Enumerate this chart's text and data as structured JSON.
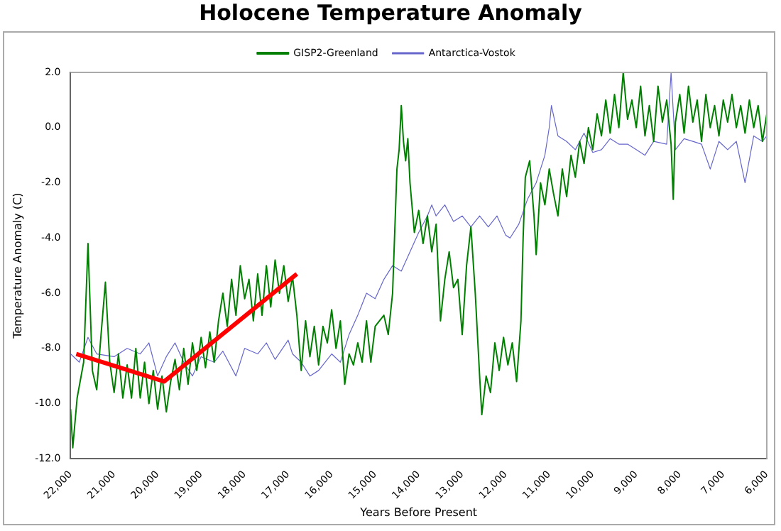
{
  "chart_data": {
    "type": "line",
    "title": "Holocene Temperature Anomaly",
    "xlabel": "Years Before Present",
    "ylabel": "Temperature Anomaly (C)",
    "xlim": [
      22000,
      6000
    ],
    "ylim": [
      -12,
      2
    ],
    "xticks": [
      {
        "value": 22000,
        "label": "22,000"
      },
      {
        "value": 21000,
        "label": "21,000"
      },
      {
        "value": 20000,
        "label": "20,000"
      },
      {
        "value": 19000,
        "label": "19,000"
      },
      {
        "value": 18000,
        "label": "18,000"
      },
      {
        "value": 17000,
        "label": "17,000"
      },
      {
        "value": 16000,
        "label": "16,000"
      },
      {
        "value": 15000,
        "label": "15,000"
      },
      {
        "value": 14000,
        "label": "14,000"
      },
      {
        "value": 13000,
        "label": "13,000"
      },
      {
        "value": 12000,
        "label": "12,000"
      },
      {
        "value": 11000,
        "label": "11,000"
      },
      {
        "value": 10000,
        "label": "10,000"
      },
      {
        "value": 9000,
        "label": "9,000"
      },
      {
        "value": 8000,
        "label": "8,000"
      },
      {
        "value": 7000,
        "label": "7,000"
      },
      {
        "value": 6000,
        "label": "6,000"
      }
    ],
    "yticks": [
      {
        "value": -12,
        "label": "-12.0"
      },
      {
        "value": -10,
        "label": "-10.0"
      },
      {
        "value": -8,
        "label": "-8.0"
      },
      {
        "value": -6,
        "label": "-6.0"
      },
      {
        "value": -4,
        "label": "-4.0"
      },
      {
        "value": -2,
        "label": "-2.0"
      },
      {
        "value": 0,
        "label": "0.0"
      },
      {
        "value": 2,
        "label": "2.0"
      }
    ],
    "legend": "top",
    "marker": "none",
    "line_style": "solid",
    "series": [
      {
        "name": "GISP2-Greenland",
        "color": "#008000",
        "x": [
          22000,
          21950,
          21850,
          21700,
          21600,
          21500,
          21400,
          21300,
          21200,
          21100,
          21000,
          20900,
          20800,
          20700,
          20600,
          20500,
          20400,
          20300,
          20200,
          20100,
          20000,
          19900,
          19800,
          19700,
          19600,
          19500,
          19400,
          19300,
          19200,
          19100,
          19000,
          18900,
          18800,
          18700,
          18600,
          18500,
          18400,
          18300,
          18200,
          18100,
          18000,
          17900,
          17800,
          17700,
          17600,
          17500,
          17400,
          17300,
          17200,
          17100,
          17000,
          16900,
          16800,
          16700,
          16600,
          16500,
          16400,
          16300,
          16200,
          16100,
          16000,
          15900,
          15800,
          15700,
          15600,
          15500,
          15400,
          15300,
          15200,
          15100,
          15000,
          14900,
          14800,
          14700,
          14600,
          14500,
          14450,
          14400,
          14350,
          14300,
          14250,
          14200,
          14100,
          14000,
          13900,
          13800,
          13700,
          13600,
          13500,
          13400,
          13300,
          13200,
          13100,
          13000,
          12900,
          12800,
          12700,
          12600,
          12550,
          12450,
          12350,
          12250,
          12150,
          12050,
          11950,
          11850,
          11750,
          11650,
          11600,
          11550,
          11450,
          11350,
          11300,
          11200,
          11100,
          11000,
          10900,
          10800,
          10700,
          10600,
          10500,
          10400,
          10300,
          10200,
          10100,
          10000,
          9900,
          9800,
          9700,
          9600,
          9500,
          9400,
          9300,
          9200,
          9100,
          9000,
          8900,
          8800,
          8700,
          8600,
          8500,
          8400,
          8300,
          8200,
          8150,
          8100,
          8000,
          7900,
          7800,
          7700,
          7600,
          7500,
          7400,
          7300,
          7200,
          7100,
          7000,
          6900,
          6800,
          6700,
          6600,
          6500,
          6400,
          6300,
          6200,
          6100,
          6000
        ],
        "values": [
          -10.2,
          -11.6,
          -9.8,
          -8.5,
          -4.2,
          -8.8,
          -9.5,
          -7.5,
          -5.6,
          -8.5,
          -9.6,
          -8.2,
          -9.8,
          -8.6,
          -9.8,
          -8.0,
          -9.8,
          -8.5,
          -10.0,
          -8.8,
          -10.2,
          -9.0,
          -10.3,
          -9.2,
          -8.4,
          -9.5,
          -8.0,
          -9.3,
          -7.8,
          -8.8,
          -7.6,
          -8.7,
          -7.4,
          -8.5,
          -7.0,
          -6.0,
          -7.2,
          -5.5,
          -6.8,
          -5.0,
          -6.2,
          -5.5,
          -7.0,
          -5.3,
          -6.8,
          -5.0,
          -6.5,
          -4.8,
          -6.0,
          -5.0,
          -6.3,
          -5.4,
          -6.8,
          -8.8,
          -7.0,
          -8.3,
          -7.2,
          -8.6,
          -7.2,
          -7.8,
          -6.6,
          -8.0,
          -7.0,
          -9.3,
          -8.2,
          -8.6,
          -7.8,
          -8.5,
          -7.0,
          -8.5,
          -7.2,
          -7.0,
          -6.8,
          -7.5,
          -6.0,
          -1.5,
          -0.8,
          0.8,
          -0.5,
          -1.2,
          -0.4,
          -2.0,
          -3.8,
          -3.0,
          -4.2,
          -3.2,
          -4.5,
          -3.5,
          -7.0,
          -5.5,
          -4.5,
          -5.8,
          -5.5,
          -7.5,
          -5.0,
          -3.6,
          -6.0,
          -9.0,
          -10.4,
          -9.0,
          -9.6,
          -7.8,
          -8.8,
          -7.6,
          -8.6,
          -7.8,
          -9.2,
          -7.0,
          -4.0,
          -1.8,
          -1.2,
          -3.2,
          -4.6,
          -2.0,
          -2.8,
          -1.5,
          -2.4,
          -3.2,
          -1.5,
          -2.5,
          -1.0,
          -1.8,
          -0.5,
          -1.3,
          0.0,
          -0.8,
          0.5,
          -0.3,
          1.0,
          -0.2,
          1.2,
          0.0,
          2.0,
          0.3,
          1.0,
          0.0,
          1.5,
          -0.3,
          0.8,
          -0.5,
          1.5,
          0.2,
          1.0,
          -0.6,
          -2.6,
          0.2,
          1.2,
          -0.2,
          1.5,
          0.2,
          1.0,
          -0.5,
          1.2,
          0.0,
          0.8,
          -0.3,
          1.0,
          0.2,
          1.2,
          0.0,
          0.8,
          -0.2,
          1.0,
          0.0,
          0.8,
          -0.5,
          0.5
        ]
      },
      {
        "name": "Antarctica-Vostok",
        "color": "#6666cc",
        "x": [
          22000,
          21800,
          21600,
          21400,
          21000,
          20700,
          20400,
          20200,
          20000,
          19800,
          19600,
          19400,
          19200,
          19000,
          18700,
          18500,
          18200,
          18000,
          17700,
          17500,
          17300,
          17000,
          16900,
          16700,
          16500,
          16300,
          16000,
          15800,
          15600,
          15400,
          15200,
          15000,
          14800,
          14600,
          14400,
          14200,
          14000,
          13800,
          13700,
          13600,
          13400,
          13200,
          13000,
          12800,
          12600,
          12400,
          12200,
          12000,
          11900,
          11700,
          11500,
          11300,
          11200,
          11100,
          11000,
          10950,
          10800,
          10600,
          10400,
          10200,
          10000,
          9800,
          9600,
          9400,
          9200,
          9000,
          8800,
          8600,
          8300,
          8200,
          8100,
          7900,
          7700,
          7500,
          7300,
          7100,
          6900,
          6700,
          6500,
          6300,
          6100,
          6000
        ],
        "values": [
          -8.2,
          -8.5,
          -7.6,
          -8.2,
          -8.3,
          -8.0,
          -8.2,
          -7.8,
          -9.0,
          -8.3,
          -7.8,
          -8.5,
          -9.0,
          -8.3,
          -8.5,
          -8.1,
          -9.0,
          -8.0,
          -8.2,
          -7.8,
          -8.4,
          -7.7,
          -8.2,
          -8.5,
          -9.0,
          -8.8,
          -8.2,
          -8.5,
          -7.5,
          -6.8,
          -6.0,
          -6.2,
          -5.5,
          -5.0,
          -5.2,
          -4.5,
          -3.8,
          -3.2,
          -2.8,
          -3.2,
          -2.8,
          -3.4,
          -3.2,
          -3.6,
          -3.2,
          -3.6,
          -3.2,
          -3.9,
          -4.0,
          -3.5,
          -2.6,
          -2.0,
          -1.5,
          -1.0,
          0.0,
          0.8,
          -0.3,
          -0.5,
          -0.8,
          -0.2,
          -0.9,
          -0.8,
          -0.4,
          -0.6,
          -0.6,
          -0.8,
          -1.0,
          -0.5,
          -0.6,
          2.0,
          -0.8,
          -0.4,
          -0.5,
          -0.6,
          -1.5,
          -0.5,
          -0.8,
          -0.5,
          -2.0,
          -0.3,
          -0.5,
          -0.3
        ]
      },
      {
        "type": "line",
        "color": "#ff0000",
        "x": [
          21870,
          19850,
          16800
        ],
        "values": [
          -8.2,
          -9.2,
          -5.3
        ]
      }
    ]
  }
}
